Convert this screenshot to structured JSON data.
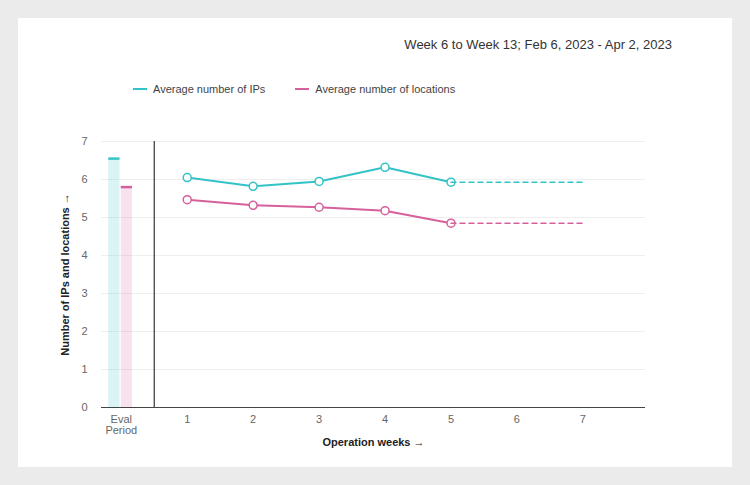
{
  "chart_data": {
    "type": "line",
    "subtitle": "Week 6 to Week 13; Feb 6, 2023 - Apr 2, 2023",
    "xlabel": "Operation weeks",
    "ylabel": "Number of IPs and locations",
    "categories": [
      "Eval Period",
      "1",
      "2",
      "3",
      "4",
      "5",
      "6",
      "7"
    ],
    "ylim": [
      0,
      7
    ],
    "yticks": [
      0,
      1,
      2,
      3,
      4,
      5,
      6,
      7
    ],
    "grid": true,
    "legend": "top-left",
    "series": [
      {
        "type": "bar",
        "color": "#33c3c6",
        "values": [
          6.55,
          null,
          null,
          null,
          null,
          null,
          null,
          null
        ]
      },
      {
        "type": "bar",
        "color": "#d6609b",
        "values": [
          5.8,
          null,
          null,
          null,
          null,
          null,
          null,
          null
        ]
      },
      {
        "name": "Average number of IPs",
        "type": "line",
        "marker": "circle",
        "line_style": "solid",
        "color": "#33c3c6",
        "values": [
          null,
          6.05,
          5.82,
          5.95,
          6.32,
          5.93,
          null,
          null
        ]
      },
      {
        "name": "Average number of locations",
        "type": "line",
        "marker": "circle",
        "line_style": "solid",
        "color": "#d6609b",
        "values": [
          null,
          5.47,
          5.32,
          5.27,
          5.18,
          4.85,
          null,
          null
        ]
      },
      {
        "type": "line",
        "line_style": "dashed",
        "color": "#33c3c6",
        "values": [
          null,
          null,
          null,
          null,
          null,
          5.93,
          5.93,
          5.93
        ]
      },
      {
        "type": "line",
        "line_style": "dashed",
        "color": "#d6609b",
        "values": [
          null,
          null,
          null,
          null,
          null,
          4.85,
          4.85,
          4.85
        ]
      }
    ]
  }
}
